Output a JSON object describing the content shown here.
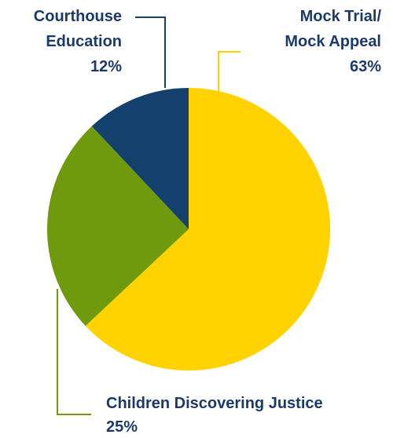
{
  "chart_data": {
    "type": "pie",
    "start_angle_deg": 0,
    "direction": "clockwise",
    "slices": [
      {
        "label": "Mock Trial/ Mock Appeal",
        "label_lines": [
          "Mock Trial/",
          "Mock Appeal"
        ],
        "value": 63,
        "value_label": "63%",
        "color": "#FFD200",
        "label_color": "#1B3A6B",
        "leader_color": "#FFD200"
      },
      {
        "label": "Children Discovering Justice",
        "label_lines": [
          "Children Discovering Justice"
        ],
        "value": 25,
        "value_label": "25%",
        "color": "#6F9A0E",
        "label_color": "#1B3A6B",
        "leader_color": "#6F9A0E"
      },
      {
        "label": "Courthouse Education",
        "label_lines": [
          "Courthouse",
          "Education"
        ],
        "value": 12,
        "value_label": "12%",
        "color": "#14406E",
        "label_color": "#1B3A6B",
        "leader_color": "#14406E"
      }
    ]
  }
}
